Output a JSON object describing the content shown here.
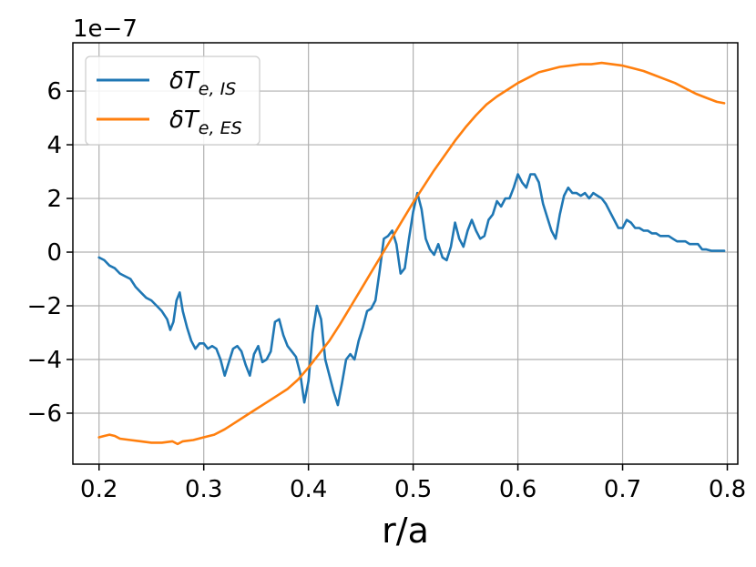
{
  "chart_data": {
    "type": "line",
    "xlabel": "r/a",
    "offset_text": "1e−7",
    "xlim": [
      0.175,
      0.81
    ],
    "ylim": [
      -7.9,
      7.8
    ],
    "xticks": [
      0.2,
      0.3,
      0.4,
      0.5,
      0.6,
      0.7,
      0.8
    ],
    "xtick_labels": [
      "0.2",
      "0.3",
      "0.4",
      "0.5",
      "0.6",
      "0.7",
      "0.8"
    ],
    "yticks": [
      -6,
      -4,
      -2,
      0,
      2,
      4,
      6
    ],
    "ytick_labels": [
      "−6",
      "−4",
      "−2",
      "0",
      "2",
      "4",
      "6"
    ],
    "grid": true,
    "legend_position": "top-left",
    "series": [
      {
        "name": "δT_e,IS",
        "color": "#1f77b4",
        "points": [
          [
            0.2,
            -0.2
          ],
          [
            0.205,
            -0.3
          ],
          [
            0.21,
            -0.5
          ],
          [
            0.215,
            -0.6
          ],
          [
            0.22,
            -0.8
          ],
          [
            0.225,
            -0.9
          ],
          [
            0.23,
            -1.0
          ],
          [
            0.235,
            -1.3
          ],
          [
            0.24,
            -1.5
          ],
          [
            0.245,
            -1.7
          ],
          [
            0.25,
            -1.8
          ],
          [
            0.255,
            -2.0
          ],
          [
            0.26,
            -2.2
          ],
          [
            0.265,
            -2.5
          ],
          [
            0.268,
            -2.9
          ],
          [
            0.271,
            -2.6
          ],
          [
            0.274,
            -1.8
          ],
          [
            0.277,
            -1.5
          ],
          [
            0.28,
            -2.2
          ],
          [
            0.284,
            -2.8
          ],
          [
            0.288,
            -3.3
          ],
          [
            0.292,
            -3.6
          ],
          [
            0.296,
            -3.4
          ],
          [
            0.3,
            -3.4
          ],
          [
            0.304,
            -3.6
          ],
          [
            0.308,
            -3.5
          ],
          [
            0.312,
            -3.6
          ],
          [
            0.316,
            -4.0
          ],
          [
            0.32,
            -4.6
          ],
          [
            0.324,
            -4.1
          ],
          [
            0.328,
            -3.6
          ],
          [
            0.332,
            -3.5
          ],
          [
            0.336,
            -3.7
          ],
          [
            0.34,
            -4.2
          ],
          [
            0.344,
            -4.6
          ],
          [
            0.348,
            -3.8
          ],
          [
            0.352,
            -3.5
          ],
          [
            0.356,
            -4.1
          ],
          [
            0.36,
            -4.0
          ],
          [
            0.364,
            -3.7
          ],
          [
            0.368,
            -2.6
          ],
          [
            0.372,
            -2.5
          ],
          [
            0.376,
            -3.1
          ],
          [
            0.38,
            -3.5
          ],
          [
            0.384,
            -3.7
          ],
          [
            0.388,
            -3.9
          ],
          [
            0.392,
            -4.5
          ],
          [
            0.396,
            -5.6
          ],
          [
            0.4,
            -4.8
          ],
          [
            0.404,
            -3.0
          ],
          [
            0.408,
            -2.0
          ],
          [
            0.412,
            -2.5
          ],
          [
            0.416,
            -4.0
          ],
          [
            0.42,
            -4.6
          ],
          [
            0.424,
            -5.2
          ],
          [
            0.428,
            -5.7
          ],
          [
            0.432,
            -4.9
          ],
          [
            0.436,
            -4.0
          ],
          [
            0.44,
            -3.8
          ],
          [
            0.444,
            -4.0
          ],
          [
            0.448,
            -3.3
          ],
          [
            0.452,
            -2.8
          ],
          [
            0.456,
            -2.2
          ],
          [
            0.46,
            -2.1
          ],
          [
            0.464,
            -1.8
          ],
          [
            0.468,
            -0.7
          ],
          [
            0.472,
            0.5
          ],
          [
            0.476,
            0.6
          ],
          [
            0.48,
            0.8
          ],
          [
            0.484,
            0.3
          ],
          [
            0.488,
            -0.8
          ],
          [
            0.492,
            -0.6
          ],
          [
            0.496,
            0.5
          ],
          [
            0.5,
            1.5
          ],
          [
            0.504,
            2.2
          ],
          [
            0.508,
            1.6
          ],
          [
            0.512,
            0.5
          ],
          [
            0.516,
            0.1
          ],
          [
            0.52,
            -0.1
          ],
          [
            0.524,
            0.3
          ],
          [
            0.528,
            -0.2
          ],
          [
            0.532,
            -0.3
          ],
          [
            0.536,
            0.2
          ],
          [
            0.54,
            1.1
          ],
          [
            0.544,
            0.5
          ],
          [
            0.548,
            0.2
          ],
          [
            0.552,
            0.8
          ],
          [
            0.556,
            1.2
          ],
          [
            0.56,
            0.8
          ],
          [
            0.564,
            0.5
          ],
          [
            0.568,
            0.6
          ],
          [
            0.572,
            1.2
          ],
          [
            0.576,
            1.4
          ],
          [
            0.58,
            1.9
          ],
          [
            0.584,
            1.7
          ],
          [
            0.588,
            2.0
          ],
          [
            0.592,
            2.0
          ],
          [
            0.596,
            2.4
          ],
          [
            0.6,
            2.9
          ],
          [
            0.604,
            2.6
          ],
          [
            0.608,
            2.4
          ],
          [
            0.612,
            2.9
          ],
          [
            0.616,
            2.9
          ],
          [
            0.62,
            2.6
          ],
          [
            0.624,
            1.8
          ],
          [
            0.628,
            1.3
          ],
          [
            0.632,
            0.8
          ],
          [
            0.636,
            0.5
          ],
          [
            0.64,
            1.4
          ],
          [
            0.644,
            2.1
          ],
          [
            0.648,
            2.4
          ],
          [
            0.652,
            2.2
          ],
          [
            0.656,
            2.2
          ],
          [
            0.66,
            2.1
          ],
          [
            0.664,
            2.2
          ],
          [
            0.668,
            2.0
          ],
          [
            0.672,
            2.2
          ],
          [
            0.676,
            2.1
          ],
          [
            0.68,
            2.0
          ],
          [
            0.684,
            1.8
          ],
          [
            0.688,
            1.5
          ],
          [
            0.692,
            1.2
          ],
          [
            0.696,
            0.9
          ],
          [
            0.7,
            0.9
          ],
          [
            0.704,
            1.2
          ],
          [
            0.708,
            1.1
          ],
          [
            0.712,
            0.9
          ],
          [
            0.716,
            0.9
          ],
          [
            0.72,
            0.8
          ],
          [
            0.724,
            0.8
          ],
          [
            0.728,
            0.7
          ],
          [
            0.732,
            0.7
          ],
          [
            0.736,
            0.6
          ],
          [
            0.74,
            0.6
          ],
          [
            0.744,
            0.6
          ],
          [
            0.748,
            0.5
          ],
          [
            0.752,
            0.4
          ],
          [
            0.756,
            0.4
          ],
          [
            0.76,
            0.4
          ],
          [
            0.764,
            0.3
          ],
          [
            0.768,
            0.3
          ],
          [
            0.772,
            0.3
          ],
          [
            0.776,
            0.1
          ],
          [
            0.78,
            0.1
          ],
          [
            0.785,
            0.05
          ],
          [
            0.79,
            0.05
          ],
          [
            0.797,
            0.05
          ]
        ]
      },
      {
        "name": "δT_e,ES",
        "color": "#ff7f0e",
        "points": [
          [
            0.2,
            -6.9
          ],
          [
            0.205,
            -6.85
          ],
          [
            0.21,
            -6.8
          ],
          [
            0.215,
            -6.85
          ],
          [
            0.22,
            -6.95
          ],
          [
            0.23,
            -7.0
          ],
          [
            0.24,
            -7.05
          ],
          [
            0.25,
            -7.1
          ],
          [
            0.26,
            -7.1
          ],
          [
            0.27,
            -7.05
          ],
          [
            0.275,
            -7.15
          ],
          [
            0.28,
            -7.05
          ],
          [
            0.29,
            -7.0
          ],
          [
            0.3,
            -6.9
          ],
          [
            0.31,
            -6.8
          ],
          [
            0.32,
            -6.6
          ],
          [
            0.33,
            -6.35
          ],
          [
            0.34,
            -6.1
          ],
          [
            0.35,
            -5.85
          ],
          [
            0.36,
            -5.6
          ],
          [
            0.37,
            -5.35
          ],
          [
            0.38,
            -5.1
          ],
          [
            0.39,
            -4.75
          ],
          [
            0.4,
            -4.3
          ],
          [
            0.41,
            -3.8
          ],
          [
            0.42,
            -3.3
          ],
          [
            0.43,
            -2.7
          ],
          [
            0.44,
            -2.05
          ],
          [
            0.45,
            -1.4
          ],
          [
            0.46,
            -0.75
          ],
          [
            0.47,
            -0.1
          ],
          [
            0.48,
            0.55
          ],
          [
            0.49,
            1.2
          ],
          [
            0.5,
            1.85
          ],
          [
            0.51,
            2.45
          ],
          [
            0.52,
            3.05
          ],
          [
            0.53,
            3.6
          ],
          [
            0.54,
            4.15
          ],
          [
            0.55,
            4.65
          ],
          [
            0.56,
            5.1
          ],
          [
            0.57,
            5.5
          ],
          [
            0.58,
            5.8
          ],
          [
            0.59,
            6.05
          ],
          [
            0.6,
            6.3
          ],
          [
            0.61,
            6.5
          ],
          [
            0.62,
            6.7
          ],
          [
            0.63,
            6.8
          ],
          [
            0.64,
            6.9
          ],
          [
            0.65,
            6.95
          ],
          [
            0.66,
            7.0
          ],
          [
            0.67,
            7.0
          ],
          [
            0.68,
            7.05
          ],
          [
            0.69,
            7.0
          ],
          [
            0.7,
            6.95
          ],
          [
            0.71,
            6.85
          ],
          [
            0.72,
            6.75
          ],
          [
            0.73,
            6.6
          ],
          [
            0.74,
            6.45
          ],
          [
            0.75,
            6.3
          ],
          [
            0.76,
            6.1
          ],
          [
            0.77,
            5.9
          ],
          [
            0.78,
            5.75
          ],
          [
            0.79,
            5.6
          ],
          [
            0.797,
            5.55
          ]
        ]
      }
    ]
  }
}
